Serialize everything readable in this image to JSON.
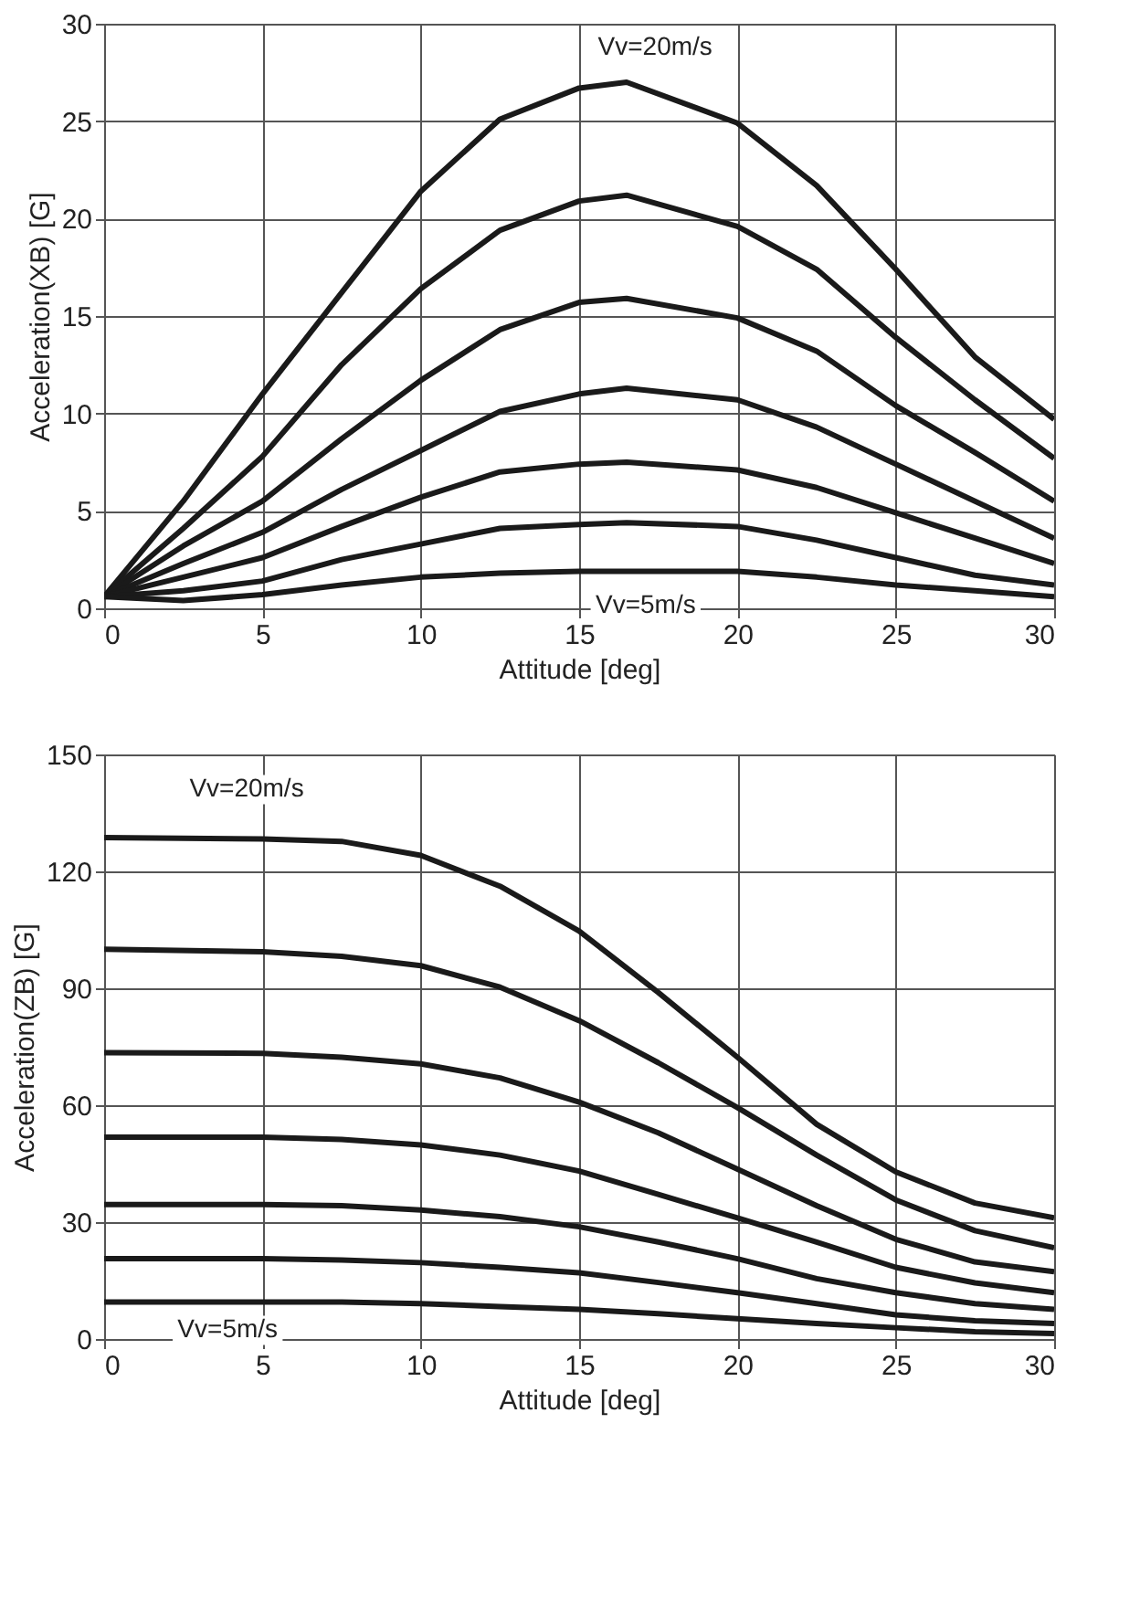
{
  "chart_data": [
    {
      "type": "line",
      "xlabel": "Attitude [deg]",
      "ylabel": "Acceleration(XB) [G]",
      "x": [
        0,
        2.5,
        5,
        7.5,
        10,
        12.5,
        15,
        16.5,
        20,
        22.5,
        25,
        27.5,
        30
      ],
      "xlim": [
        0,
        30
      ],
      "xticks": [
        0,
        5,
        10,
        15,
        20,
        25,
        30
      ],
      "ylim": [
        0,
        30
      ],
      "yticks": [
        0,
        5,
        10,
        15,
        20,
        25,
        30
      ],
      "grid": true,
      "line_style": "solid",
      "series": [
        {
          "color": "#1a1a1a",
          "values": [
            0.6,
            5.5,
            11.0,
            16.2,
            21.4,
            25.1,
            26.7,
            27.0,
            24.9,
            21.7,
            17.4,
            12.9,
            9.7
          ]
        },
        {
          "color": "#1a1a1a",
          "values": [
            0.6,
            4.1,
            7.8,
            12.5,
            16.4,
            19.4,
            20.9,
            21.2,
            19.6,
            17.4,
            13.9,
            10.7,
            7.7
          ]
        },
        {
          "color": "#1a1a1a",
          "values": [
            0.6,
            3.2,
            5.5,
            8.7,
            11.7,
            14.3,
            15.7,
            15.9,
            14.9,
            13.2,
            10.4,
            8.0,
            5.5
          ]
        },
        {
          "color": "#1a1a1a",
          "values": [
            0.6,
            2.3,
            3.9,
            6.1,
            8.1,
            10.1,
            11.0,
            11.3,
            10.7,
            9.3,
            7.4,
            5.5,
            3.6
          ]
        },
        {
          "color": "#1a1a1a",
          "values": [
            0.6,
            1.6,
            2.6,
            4.2,
            5.7,
            7.0,
            7.4,
            7.5,
            7.1,
            6.2,
            4.9,
            3.6,
            2.3
          ]
        },
        {
          "color": "#1a1a1a",
          "values": [
            0.6,
            0.9,
            1.4,
            2.5,
            3.3,
            4.1,
            4.3,
            4.4,
            4.2,
            3.5,
            2.6,
            1.7,
            1.2
          ]
        },
        {
          "color": "#1a1a1a",
          "values": [
            0.6,
            0.4,
            0.7,
            1.2,
            1.6,
            1.8,
            1.9,
            1.9,
            1.9,
            1.6,
            1.2,
            0.9,
            0.6
          ]
        }
      ],
      "annotations": [
        "Vv=20m/s",
        "Vv=5m/s"
      ]
    },
    {
      "type": "line",
      "xlabel": "Attitude [deg]",
      "ylabel": "Acceleration(ZB) [G]",
      "x": [
        0,
        5,
        7.5,
        10,
        12.5,
        15,
        17.5,
        20,
        22.5,
        25,
        27.5,
        30
      ],
      "xlim": [
        0,
        30
      ],
      "xticks": [
        0,
        5,
        10,
        15,
        20,
        25,
        30
      ],
      "ylim": [
        0,
        150
      ],
      "yticks": [
        0,
        30,
        60,
        90,
        120,
        150
      ],
      "grid": true,
      "line_style": "solid",
      "series": [
        {
          "color": "#1a1a1a",
          "values": [
            128.7,
            128.3,
            127.7,
            124.1,
            116.2,
            104.7,
            88.9,
            72.3,
            55.1,
            42.9,
            34.9,
            31.1
          ]
        },
        {
          "color": "#1a1a1a",
          "values": [
            100,
            99.4,
            98.2,
            95.8,
            90.3,
            81.7,
            70.9,
            59.4,
            47.2,
            35.7,
            27.8,
            23.4
          ]
        },
        {
          "color": "#1a1a1a",
          "values": [
            73.5,
            73.3,
            72.3,
            70.6,
            67.0,
            60.8,
            52.9,
            43.6,
            34.2,
            25.6,
            19.8,
            17.3
          ]
        },
        {
          "color": "#1a1a1a",
          "values": [
            51.8,
            51.8,
            51.2,
            49.8,
            47.2,
            43.1,
            37.1,
            31.1,
            24.9,
            18.4,
            14.4,
            11.9
          ]
        },
        {
          "color": "#1a1a1a",
          "values": [
            34.5,
            34.5,
            34.2,
            33.1,
            31.4,
            28.8,
            24.9,
            20.6,
            15.5,
            11.9,
            9.1,
            7.6
          ]
        },
        {
          "color": "#1a1a1a",
          "values": [
            20.6,
            20.6,
            20.3,
            19.6,
            18.4,
            17.0,
            14.5,
            11.9,
            9.1,
            6.2,
            4.7,
            4.0
          ]
        },
        {
          "color": "#1a1a1a",
          "values": [
            9.5,
            9.5,
            9.5,
            9.1,
            8.3,
            7.6,
            6.5,
            5.2,
            4.0,
            2.9,
            1.9,
            1.4
          ]
        }
      ],
      "annotations": [
        "Vv=20m/s",
        "Vv=5m/s"
      ]
    }
  ]
}
